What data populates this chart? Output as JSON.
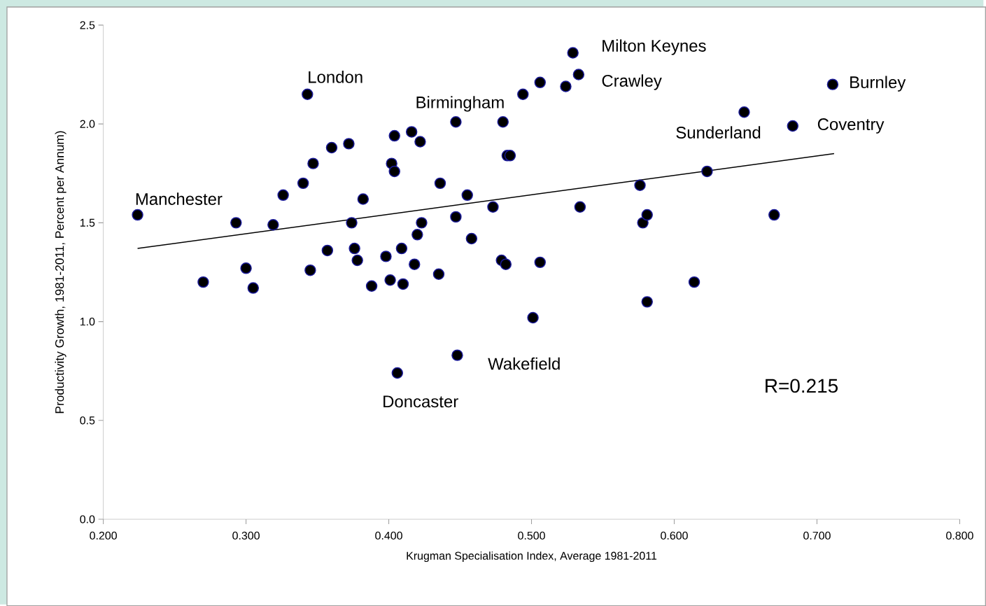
{
  "chart_data": {
    "type": "scatter",
    "xlabel": "Krugman Specialisation Index, Average 1981-2011",
    "ylabel": "Productivity Growth, 1981-2011, Percent per Annum)",
    "xlim": [
      0.2,
      0.8
    ],
    "ylim": [
      0,
      2.5
    ],
    "xticks": [
      {
        "value": 0.2,
        "label": "0.200"
      },
      {
        "value": 0.3,
        "label": "0.300"
      },
      {
        "value": 0.4,
        "label": "0.400"
      },
      {
        "value": 0.5,
        "label": "0.500"
      },
      {
        "value": 0.6,
        "label": "0.600"
      },
      {
        "value": 0.7,
        "label": "0.700"
      },
      {
        "value": 0.8,
        "label": "0.800"
      }
    ],
    "yticks": [
      {
        "value": 0,
        "label": "0.0"
      },
      0.5,
      {
        "value": 1,
        "label": "1.0"
      },
      1.5,
      {
        "value": 2,
        "label": "2.0"
      },
      2.5
    ],
    "grid": false,
    "series": [
      {
        "type": "scatter",
        "marker": "circle",
        "color": "#000000",
        "x": [
          0.224,
          0.27,
          0.293,
          0.3,
          0.305,
          0.319,
          0.326,
          0.34,
          0.343,
          0.345,
          0.347,
          0.357,
          0.36,
          0.372,
          0.374,
          0.376,
          0.378,
          0.382,
          0.388,
          0.398,
          0.401,
          0.402,
          0.404,
          0.404,
          0.406,
          0.409,
          0.41,
          0.416,
          0.418,
          0.42,
          0.422,
          0.423,
          0.435,
          0.436,
          0.447,
          0.447,
          0.448,
          0.455,
          0.458,
          0.473,
          0.479,
          0.48,
          0.482,
          0.483,
          0.485,
          0.494,
          0.501,
          0.506,
          0.506,
          0.524,
          0.529,
          0.533,
          0.534,
          0.576,
          0.578,
          0.581,
          0.581,
          0.614,
          0.623,
          0.649,
          0.67,
          0.683,
          0.711
        ],
        "values": [
          1.54,
          1.2,
          1.5,
          1.27,
          1.17,
          1.49,
          1.64,
          1.7,
          2.15,
          1.26,
          1.8,
          1.36,
          1.88,
          1.9,
          1.5,
          1.37,
          1.31,
          1.62,
          1.18,
          1.33,
          1.21,
          1.8,
          1.76,
          1.94,
          0.74,
          1.37,
          1.19,
          1.96,
          1.29,
          1.44,
          1.91,
          1.5,
          1.24,
          1.7,
          1.53,
          2.01,
          0.83,
          1.64,
          1.42,
          1.58,
          1.31,
          2.01,
          1.29,
          1.84,
          1.84,
          2.15,
          1.02,
          2.21,
          1.3,
          2.19,
          2.36,
          2.25,
          1.58,
          1.69,
          1.5,
          1.54,
          1.1,
          1.2,
          1.76,
          2.06,
          1.54,
          1.99,
          2.2
        ]
      },
      {
        "type": "line",
        "marker": "none",
        "color": "#000000",
        "x": [
          0.224,
          0.712
        ],
        "values": [
          1.37,
          1.85
        ]
      }
    ],
    "annotations": [
      {
        "text": "Manchester",
        "x": 0.224,
        "y": 1.54
      },
      {
        "text": "London",
        "x": 0.343,
        "y": 2.15
      },
      {
        "text": "Birmingham",
        "x": 0.447,
        "y": 2.01
      },
      {
        "text": "Milton Keynes",
        "x": 0.529,
        "y": 2.36
      },
      {
        "text": "Crawley",
        "x": 0.533,
        "y": 2.25
      },
      {
        "text": "Burnley",
        "x": 0.711,
        "y": 2.2
      },
      {
        "text": "Coventry",
        "x": 0.683,
        "y": 1.99
      },
      {
        "text": "Sunderland",
        "x": 0.649,
        "y": 2.06
      },
      {
        "text": "Wakefield",
        "x": 0.448,
        "y": 0.83
      },
      {
        "text": "Doncaster",
        "x": 0.406,
        "y": 0.74
      },
      "R=0.215"
    ]
  }
}
